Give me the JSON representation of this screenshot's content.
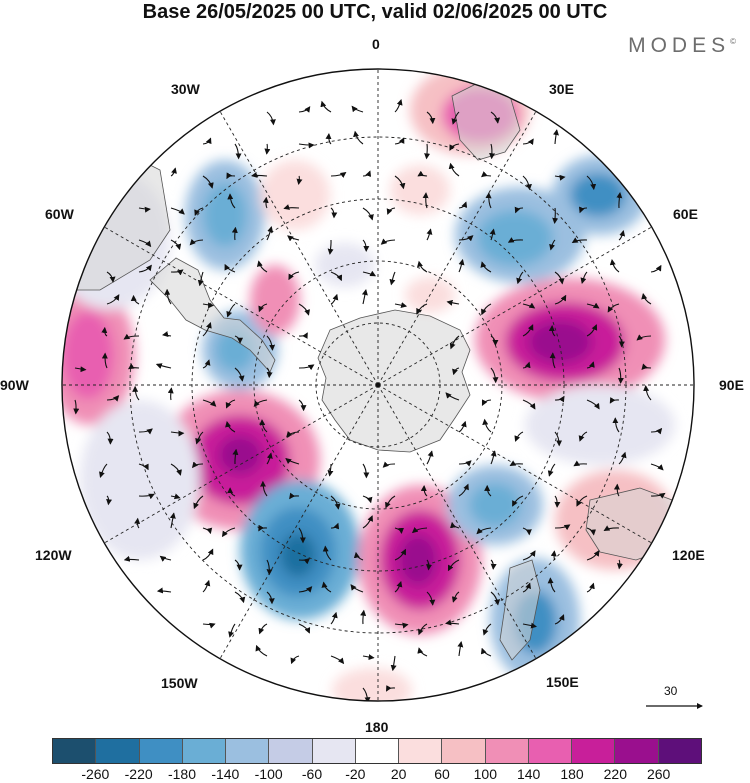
{
  "title": "Base 26/05/2025 00 UTC, valid 02/06/2025 00 UTC",
  "brand": "MODES",
  "brand_mark": "©",
  "map": {
    "projection": "south-polar-stereographic",
    "longitude_labels": [
      "0",
      "30E",
      "60E",
      "90E",
      "120E",
      "150E",
      "180",
      "150W",
      "120W",
      "90W",
      "60W",
      "30W"
    ],
    "vector_reference": "30",
    "colorbar": {
      "colors": [
        "#1c4f6e",
        "#1f6fa0",
        "#3f8fc3",
        "#6aaed5",
        "#9bbfe0",
        "#c5cce6",
        "#e6e6f2",
        "#ffffff",
        "#fbdede",
        "#f6c0c4",
        "#f08fb6",
        "#e85fb0",
        "#c81f9a",
        "#9a0f8e",
        "#5e0f7a"
      ],
      "tick_labels": [
        "-260",
        "-220",
        "-180",
        "-140",
        "-100",
        "-60",
        "-20",
        "20",
        "60",
        "100",
        "140",
        "180",
        "220",
        "260"
      ]
    }
  }
}
